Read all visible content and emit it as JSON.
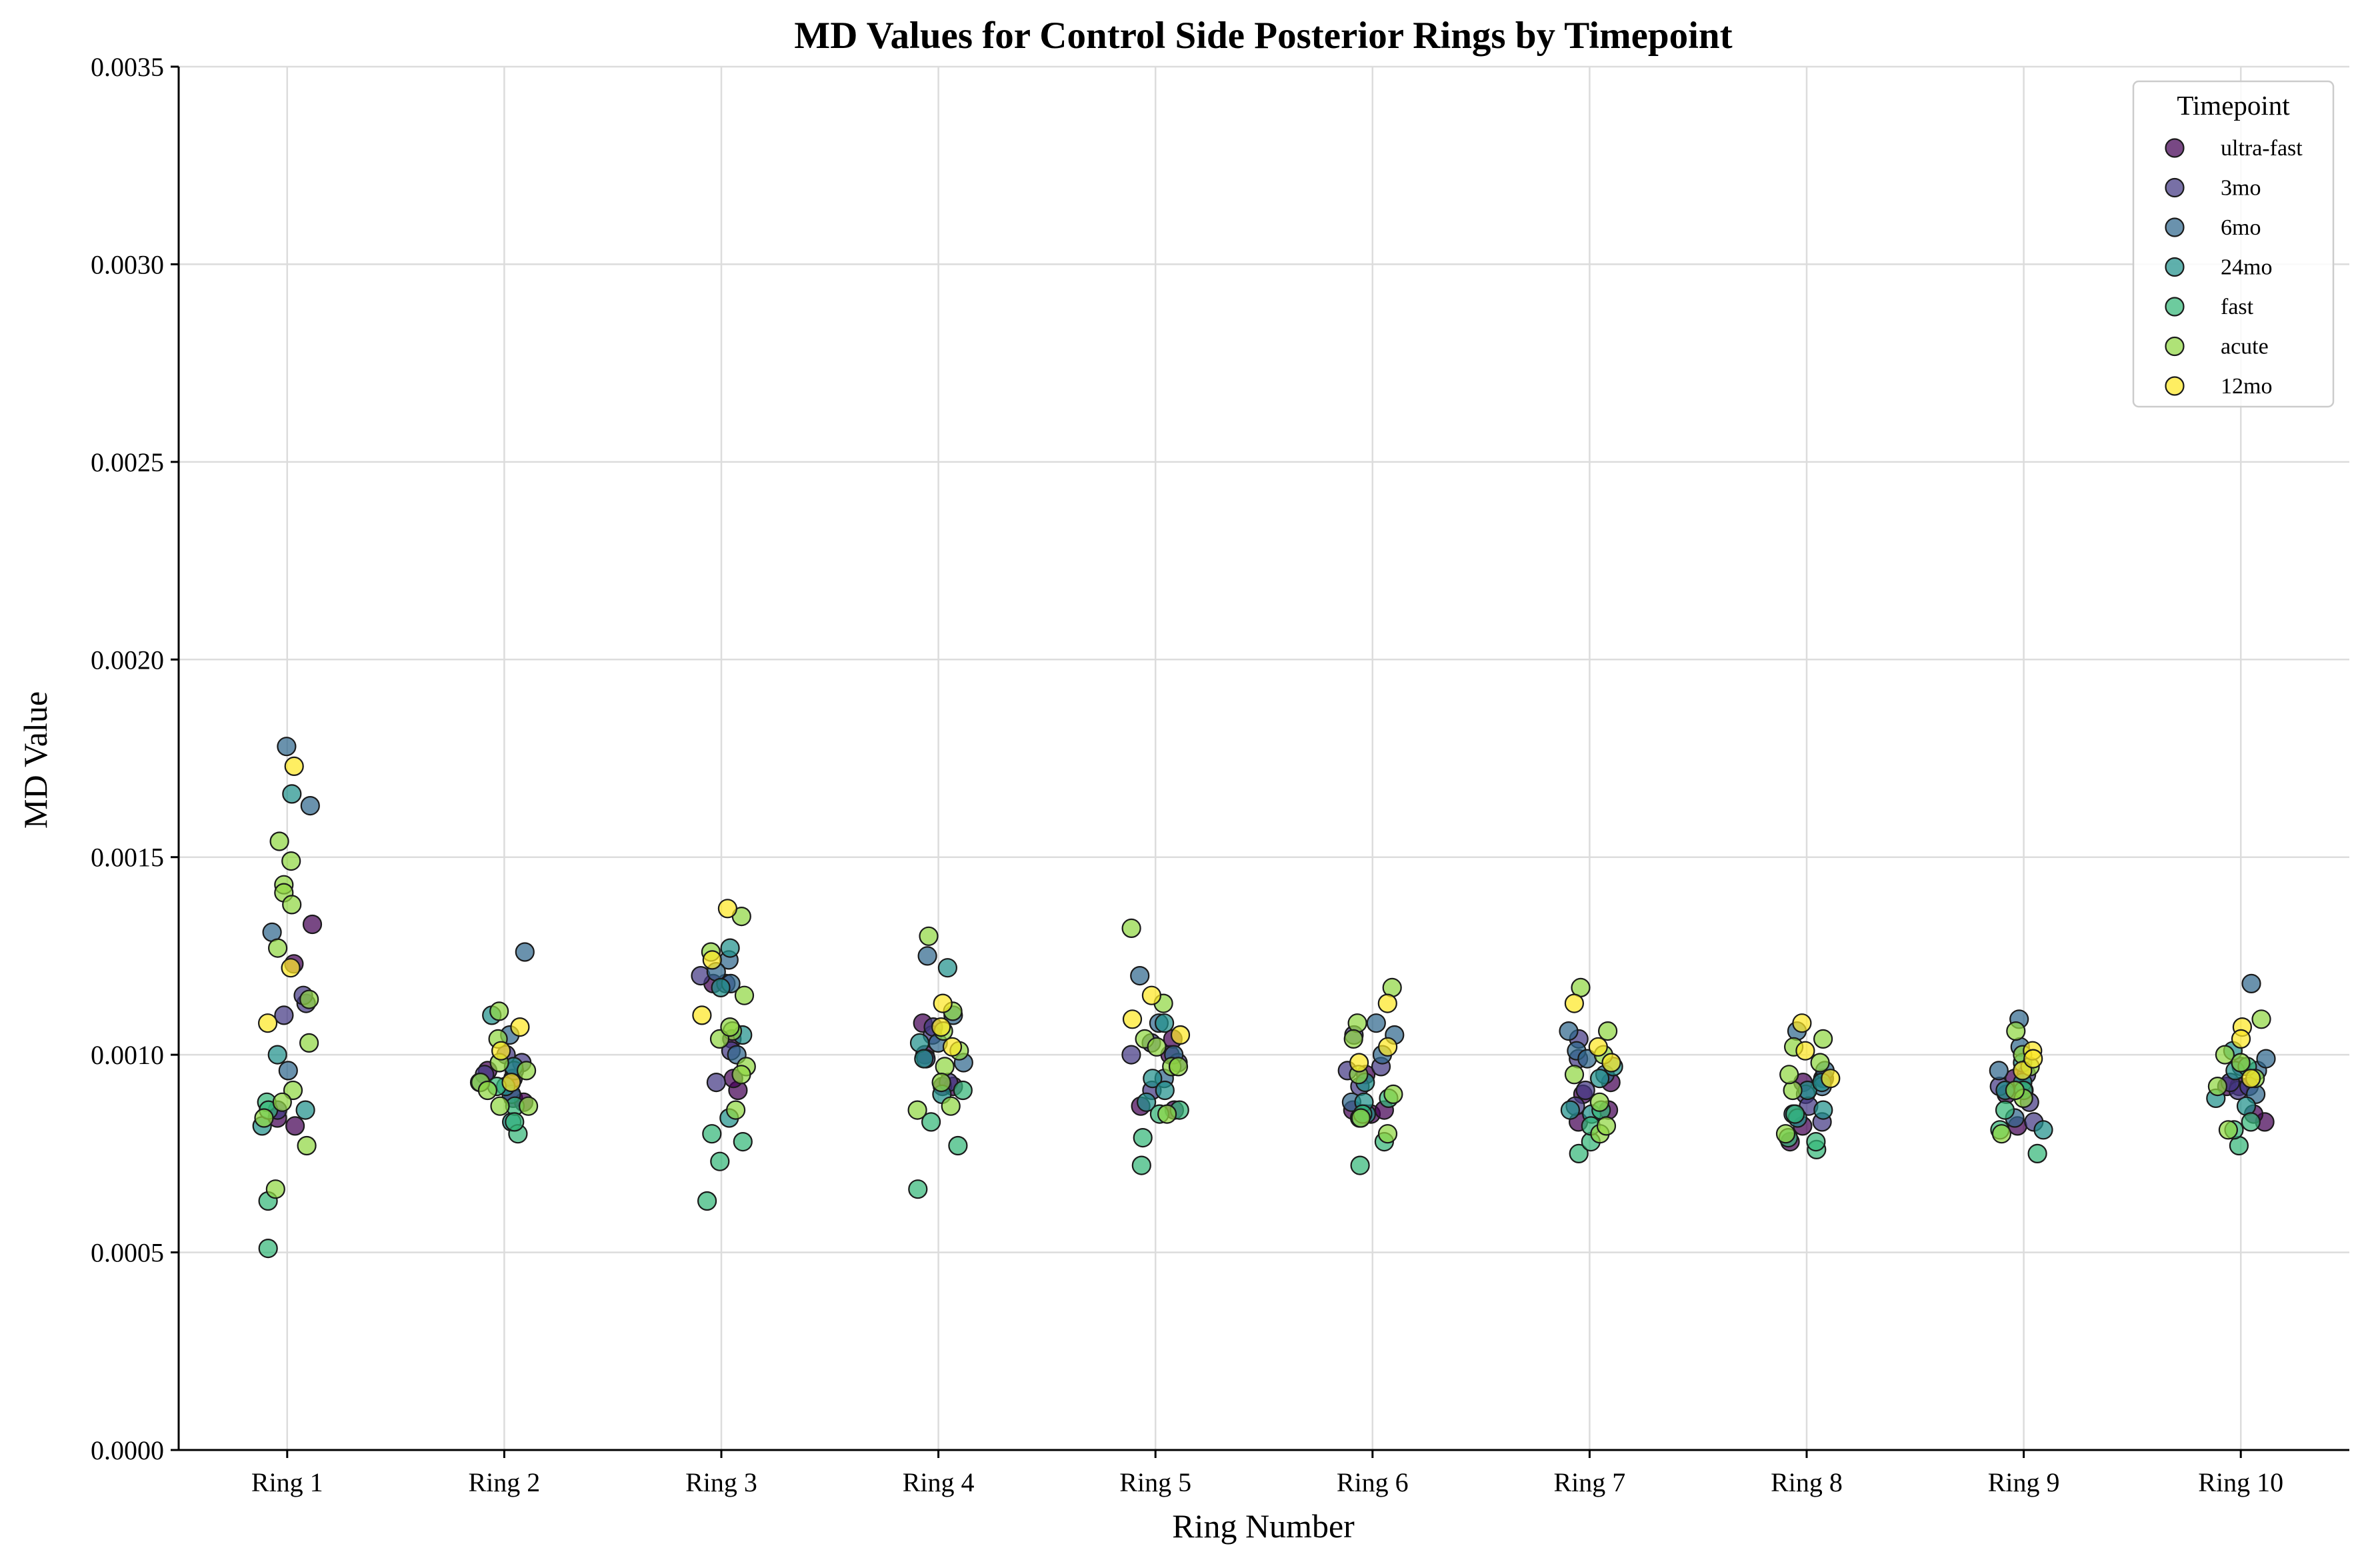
{
  "chart_data": {
    "type": "scatter",
    "title": "MD Values for Control Side Posterior Rings by Timepoint",
    "xlabel": "Ring Number",
    "ylabel": "MD Value",
    "categories": [
      "Ring 1",
      "Ring 2",
      "Ring 3",
      "Ring 4",
      "Ring 5",
      "Ring 6",
      "Ring 7",
      "Ring 8",
      "Ring 9",
      "Ring 10"
    ],
    "ylim": [
      0,
      0.0035
    ],
    "yticks": [
      "0.0000",
      "0.0005",
      "0.0010",
      "0.0015",
      "0.0020",
      "0.0025",
      "0.0030",
      "0.0035"
    ],
    "grid": true,
    "legend": {
      "title": "Timepoint",
      "placement": "top-right"
    },
    "jitter": "strip plot; points horizontally jittered within each ring",
    "series": [
      {
        "name": "ultra-fast",
        "color": "#440154",
        "values": [
          [
            0.00082,
            0.00084,
            0.00123,
            0.00133
          ],
          [
            0.00089,
            0.00094,
            0.00096,
            0.00088
          ],
          [
            0.00104,
            0.00091,
            0.00094,
            0.00118
          ],
          [
            0.00092,
            0.00108,
            0.00092,
            0.001
          ],
          [
            0.00087,
            0.001,
            0.00086,
            0.00104
          ],
          [
            0.00086,
            0.00085,
            0.00086,
            0.00095
          ],
          [
            0.00083,
            0.0009,
            0.00093,
            0.00086
          ],
          [
            0.00082,
            0.00093,
            0.00094,
            0.00078
          ],
          [
            0.0009,
            0.00094,
            0.00082,
            0.00091
          ],
          [
            0.00083,
            0.00092,
            0.00085,
            0.00092
          ]
        ]
      },
      {
        "name": "3mo",
        "color": "#443983",
        "values": [
          [
            0.0011,
            0.00113,
            0.00115,
            0.00086
          ],
          [
            0.001,
            0.00098,
            0.00096,
            0.00095
          ],
          [
            0.00118,
            0.0012,
            0.00101,
            0.00093
          ],
          [
            0.00093,
            0.00099,
            0.00105,
            0.00107
          ],
          [
            0.00103,
            0.00098,
            0.00091,
            0.001
          ],
          [
            0.00092,
            0.00105,
            0.00097,
            0.00096
          ],
          [
            0.00104,
            0.00099,
            0.00091,
            0.00087
          ],
          [
            0.00083,
            0.0009,
            0.00087,
            0.00094
          ],
          [
            0.00088,
            0.00083,
            0.00092,
            0.00095
          ],
          [
            0.00091,
            0.00097,
            0.00092,
            0.00093
          ]
        ]
      },
      {
        "name": "6mo",
        "color": "#31688e",
        "values": [
          [
            0.00178,
            0.00163,
            0.00131,
            0.00096
          ],
          [
            0.00126,
            0.00105,
            0.00093,
            0.0009
          ],
          [
            0.00124,
            0.00121,
            0.001,
            0.00118
          ],
          [
            0.00125,
            0.0011,
            0.00098,
            0.00103
          ],
          [
            0.0012,
            0.00108,
            0.00094,
            0.001
          ],
          [
            0.00108,
            0.001,
            0.00088,
            0.00105
          ],
          [
            0.00106,
            0.00101,
            0.00099,
            0.00095
          ],
          [
            0.00106,
            0.00096,
            0.00085,
            0.00092
          ],
          [
            0.00109,
            0.00102,
            0.00096,
            0.00084
          ],
          [
            0.00118,
            0.00096,
            0.0009,
            0.00099
          ]
        ]
      },
      {
        "name": "24mo",
        "color": "#21918c",
        "values": [
          [
            0.00166,
            0.00086,
            0.001,
            0.00082
          ],
          [
            0.0011,
            0.00092,
            0.00083,
            0.00097
          ],
          [
            0.00127,
            0.00117,
            0.00084,
            0.00105
          ],
          [
            0.00122,
            0.00103,
            0.0009,
            0.00099
          ],
          [
            0.00108,
            0.00094,
            0.00088,
            0.00091
          ],
          [
            0.00093,
            0.00085,
            0.00084,
            0.00088
          ],
          [
            0.00086,
            0.00085,
            0.00097,
            0.00094
          ],
          [
            0.00091,
            0.00086,
            0.00093,
            0.00084
          ],
          [
            0.00098,
            0.00093,
            0.00091,
            0.00081
          ],
          [
            0.00101,
            0.00089,
            0.00087,
            0.00096
          ]
        ]
      },
      {
        "name": "fast",
        "color": "#35b779",
        "values": [
          [
            0.00088,
            0.00086,
            0.00063,
            0.00051
          ],
          [
            0.0008,
            0.00087,
            0.00083,
            0.00092
          ],
          [
            0.00063,
            0.00073,
            0.00078,
            0.0008
          ],
          [
            0.00066,
            0.00077,
            0.00083,
            0.00091
          ],
          [
            0.00072,
            0.00079,
            0.00085,
            0.00086
          ],
          [
            0.00072,
            0.00078,
            0.00085,
            0.00089
          ],
          [
            0.00075,
            0.00078,
            0.00086,
            0.00082
          ],
          [
            0.00076,
            0.00078,
            0.00085,
            0.00079
          ],
          [
            0.00075,
            0.00081,
            0.00086,
            0.00091
          ],
          [
            0.00077,
            0.00081,
            0.00083,
            0.00097
          ]
        ]
      },
      {
        "name": "acute",
        "color": "#90d743",
        "values": [
          [
            0.00149,
            0.00154,
            0.00143,
            0.00141,
            0.00138,
            0.00127,
            0.00114,
            0.00103,
            0.00091,
            0.00088,
            0.00077,
            0.00066,
            0.00084
          ],
          [
            0.00098,
            0.00111,
            0.00096,
            0.00087,
            0.00093,
            0.00087,
            0.00104,
            0.00091
          ],
          [
            0.00135,
            0.00126,
            0.00115,
            0.00106,
            0.00097,
            0.00086,
            0.00104,
            0.00107,
            0.00095
          ],
          [
            0.0013,
            0.00111,
            0.00106,
            0.00097,
            0.00093,
            0.00086,
            0.00101,
            0.00087
          ],
          [
            0.00132,
            0.00113,
            0.00104,
            0.00097,
            0.00085,
            0.00097,
            0.00102
          ],
          [
            0.00117,
            0.00108,
            0.00104,
            0.00095,
            0.0009,
            0.0008,
            0.00084
          ],
          [
            0.00117,
            0.00106,
            0.001,
            0.00088,
            0.0008,
            0.00095,
            0.00082
          ],
          [
            0.00104,
            0.00098,
            0.00091,
            0.00095,
            0.0008,
            0.00102
          ],
          [
            0.00106,
            0.001,
            0.00089,
            0.0008,
            0.00091,
            0.00097
          ],
          [
            0.00109,
            0.001,
            0.00092,
            0.00081,
            0.00094,
            0.00098
          ]
        ]
      },
      {
        "name": "12mo",
        "color": "#fde725",
        "values": [
          [
            0.00173,
            0.00122,
            0.00108
          ],
          [
            0.00107,
            0.00101,
            0.00093
          ],
          [
            0.00137,
            0.00124,
            0.0011
          ],
          [
            0.00113,
            0.00107,
            0.00102
          ],
          [
            0.00115,
            0.00109,
            0.00105
          ],
          [
            0.00113,
            0.00102,
            0.00098
          ],
          [
            0.00113,
            0.00102,
            0.00098
          ],
          [
            0.00108,
            0.00101,
            0.00094
          ],
          [
            0.00101,
            0.00096,
            0.00099
          ],
          [
            0.00107,
            0.00104,
            0.00094
          ]
        ]
      }
    ]
  }
}
